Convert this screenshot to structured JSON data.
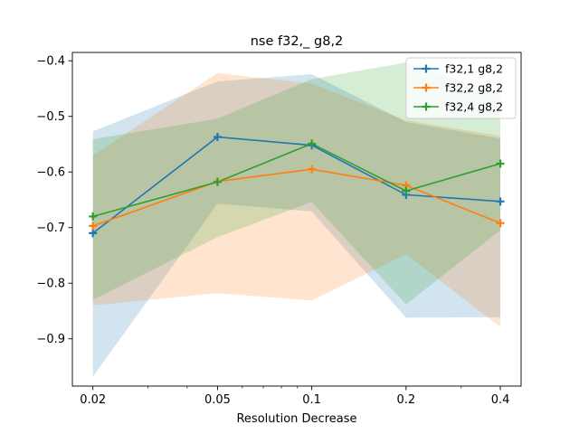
{
  "chart_data": {
    "type": "line",
    "title": "nse f32,_ g8,2",
    "xlabel": "Resolution Decrease",
    "ylabel": "",
    "x_scale": "log",
    "x": [
      0.02,
      0.05,
      0.1,
      0.2,
      0.4
    ],
    "x_tick_labels": [
      "0.02",
      "0.05",
      "0.1",
      "0.2",
      "0.4"
    ],
    "ylim": [
      -0.985,
      -0.385
    ],
    "y_ticks": [
      -0.9,
      -0.8,
      -0.7,
      -0.6,
      -0.5,
      -0.4
    ],
    "y_tick_labels": [
      "−0.9",
      "−0.8",
      "−0.7",
      "−0.6",
      "−0.5",
      "−0.4"
    ],
    "grid": false,
    "legend_position": "top-right",
    "series": [
      {
        "name": "f32,1 g8,2",
        "color": "#1f77b4",
        "marker": "plus",
        "values": [
          -0.71,
          -0.537,
          -0.552,
          -0.641,
          -0.653
        ],
        "band_upper": [
          -0.527,
          -0.437,
          -0.424,
          -0.51,
          -0.54
        ],
        "band_lower": [
          -0.968,
          -0.657,
          -0.671,
          -0.862,
          -0.861
        ]
      },
      {
        "name": "f32,2 g8,2",
        "color": "#ff7f0e",
        "marker": "plus",
        "values": [
          -0.697,
          -0.617,
          -0.595,
          -0.624,
          -0.692
        ],
        "band_upper": [
          -0.57,
          -0.422,
          -0.441,
          -0.507,
          -0.535
        ],
        "band_lower": [
          -0.84,
          -0.818,
          -0.831,
          -0.748,
          -0.879
        ]
      },
      {
        "name": "f32,4 g8,2",
        "color": "#2ca02c",
        "marker": "plus",
        "values": [
          -0.68,
          -0.618,
          -0.549,
          -0.634,
          -0.585
        ],
        "band_upper": [
          -0.541,
          -0.504,
          -0.433,
          -0.403,
          -0.46
        ],
        "band_lower": [
          -0.83,
          -0.717,
          -0.654,
          -0.838,
          -0.705
        ]
      }
    ]
  }
}
